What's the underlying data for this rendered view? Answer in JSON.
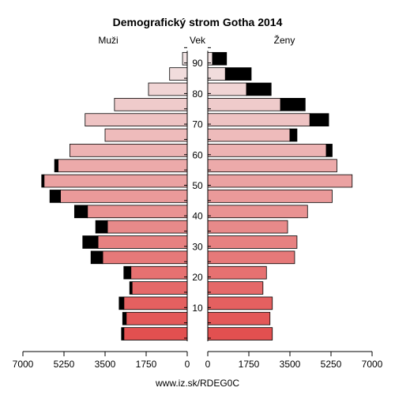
{
  "chart_data": {
    "type": "bar",
    "title": "Demografický strom Gotha 2014",
    "left_label": "Muži",
    "center_label": "Vek",
    "right_label": "Ženy",
    "footer": "www.iz.sk/RDEG0C",
    "x_ticks": [
      "7000",
      "5250",
      "3500",
      "1750",
      "0",
      "1750",
      "3500",
      "5250",
      "7000"
    ],
    "x_tick_values": [
      7000,
      5250,
      3500,
      1750,
      0
    ],
    "xlim": [
      0,
      7000
    ],
    "age_ticks": [
      "10",
      "20",
      "30",
      "40",
      "50",
      "60",
      "70",
      "80",
      "90"
    ],
    "age_tick_values": [
      10,
      20,
      30,
      40,
      50,
      60,
      70,
      80,
      90
    ],
    "age_groups_start": [
      0,
      5,
      10,
      15,
      20,
      25,
      30,
      35,
      40,
      45,
      50,
      55,
      60,
      65,
      70,
      75,
      80,
      85,
      90
    ],
    "series": [
      {
        "name": "Muži",
        "base": [
          2700,
          2600,
          2700,
          2350,
          2400,
          3600,
          3800,
          3400,
          4250,
          5400,
          6100,
          5500,
          5000,
          3500,
          4350,
          3100,
          1650,
          750,
          200
        ],
        "extra": [
          100,
          150,
          200,
          100,
          300,
          500,
          650,
          500,
          550,
          450,
          100,
          150,
          0,
          0,
          0,
          0,
          0,
          0,
          0
        ]
      },
      {
        "name": "Ženy",
        "base": [
          2750,
          2650,
          2750,
          2350,
          2500,
          3700,
          3800,
          3400,
          4250,
          5300,
          6150,
          5500,
          5050,
          3500,
          4350,
          3100,
          1650,
          750,
          200
        ],
        "extra": [
          0,
          0,
          0,
          0,
          0,
          0,
          0,
          0,
          0,
          0,
          0,
          0,
          250,
          300,
          800,
          1050,
          1050,
          1100,
          600
        ]
      }
    ],
    "colors": {
      "extra": "#000000",
      "bar_stroke": "#000000",
      "young": "#e25050",
      "old": "#f2e4e4"
    },
    "grid": false
  }
}
